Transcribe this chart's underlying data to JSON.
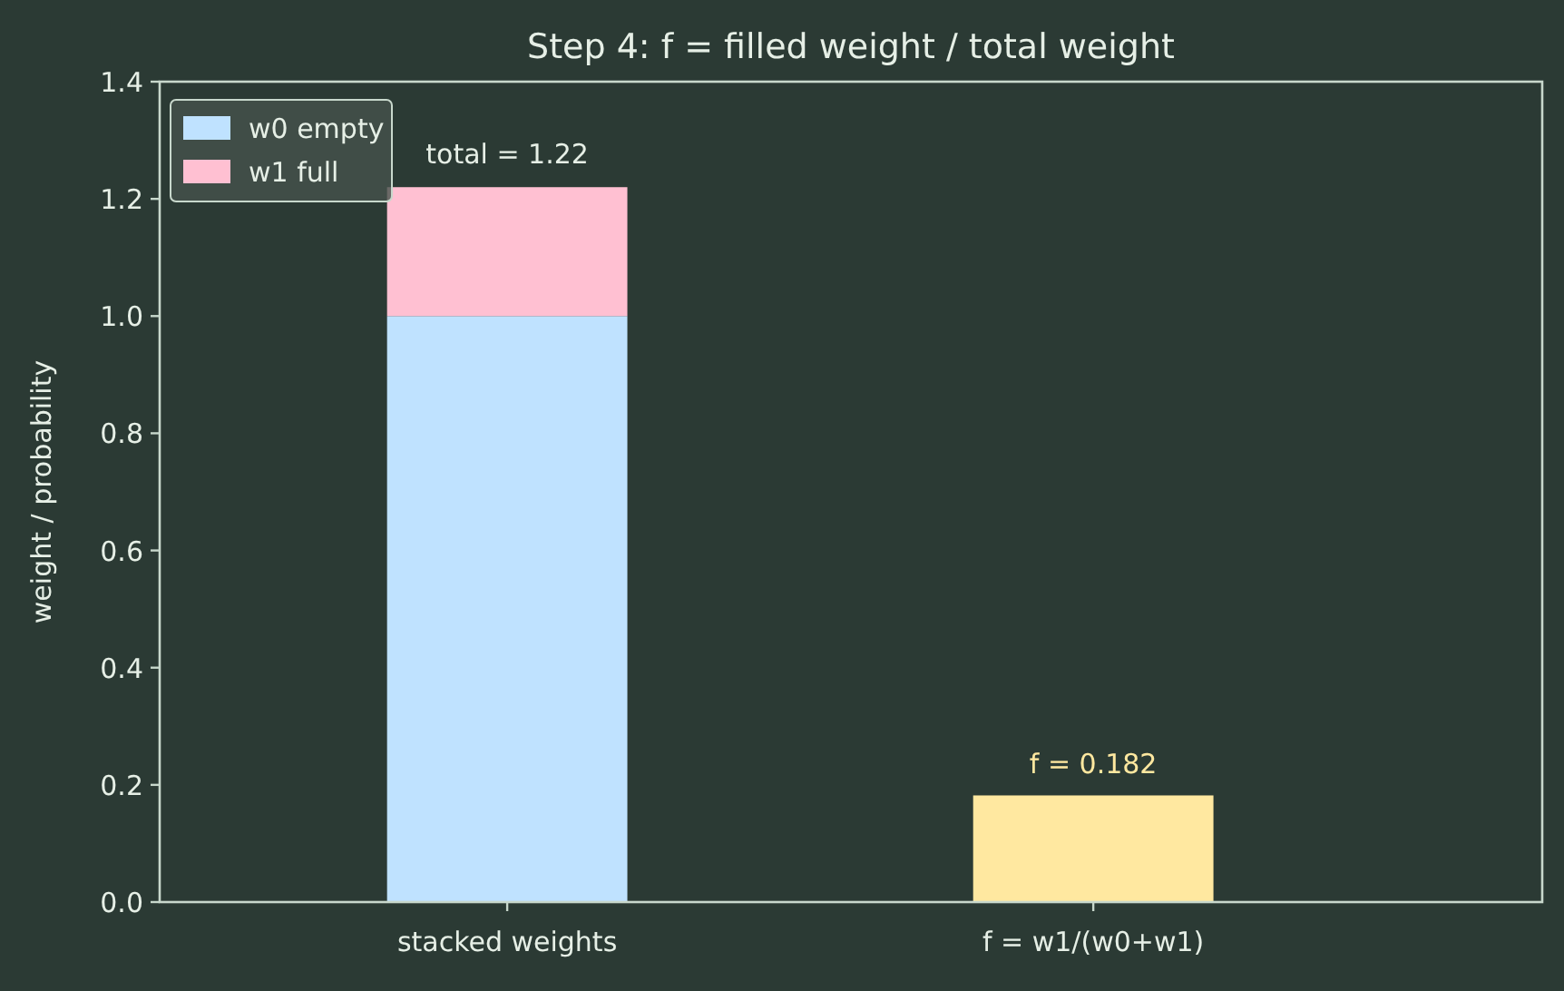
{
  "chart_data": {
    "type": "bar",
    "title": "Step 4: f = filled weight / total weight",
    "ylabel": "weight / probability",
    "categories": [
      "stacked weights",
      "f = w1/(w0+w1)"
    ],
    "stacked": true,
    "series": [
      {
        "name": "w0 empty",
        "color": "#bfe2ff",
        "values": [
          1.0,
          null
        ]
      },
      {
        "name": "w1 full",
        "color": "#ffc0d2",
        "values": [
          0.22,
          null
        ]
      },
      {
        "color": "#ffe8a0",
        "values": [
          null,
          0.182
        ],
        "value_labels": [
          null,
          "f = 0.182"
        ]
      }
    ],
    "totals": [
      "total = 1.22",
      null
    ],
    "ylim": [
      0,
      1.4
    ],
    "yticks": [
      {
        "value": 0,
        "label": "0.0"
      },
      {
        "value": 0.2,
        "label": "0.2"
      },
      {
        "value": 0.4,
        "label": "0.4"
      },
      {
        "value": 0.6,
        "label": "0.6"
      },
      {
        "value": 0.8,
        "label": "0.8"
      },
      {
        "value": 1.0,
        "label": "1.0"
      },
      {
        "value": 1.2,
        "label": "1.2"
      },
      {
        "value": 1.4,
        "label": "1.4"
      }
    ],
    "legend": "top left"
  }
}
